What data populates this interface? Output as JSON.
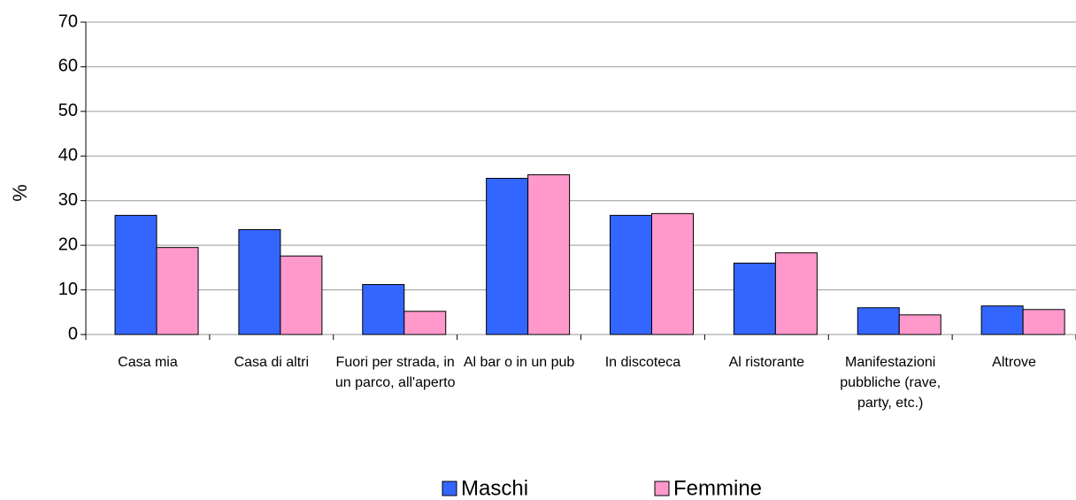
{
  "chart_data": {
    "type": "bar",
    "ylabel": "%",
    "categories": [
      "Casa mia",
      "Casa di altri",
      "Fuori per strada, in un parco, all'aperto",
      "Al bar o in un pub",
      "In discoteca",
      "Al ristorante",
      "Manifestazioni pubbliche (rave, party, etc.)",
      "Altrove"
    ],
    "series": [
      {
        "name": "Maschi",
        "color": "#3366ff",
        "values": [
          26.7,
          23.5,
          11.2,
          35,
          26.7,
          16,
          6,
          6.4
        ]
      },
      {
        "name": "Femmine",
        "color": "#ff99cc",
        "values": [
          19.5,
          17.6,
          5.2,
          35.8,
          27.1,
          18.3,
          4.4,
          5.6
        ]
      }
    ],
    "ylim": [
      0,
      70
    ],
    "yticks": [
      0,
      10,
      20,
      30,
      40,
      50,
      60,
      70
    ],
    "grid": true,
    "legend": "bottom"
  }
}
